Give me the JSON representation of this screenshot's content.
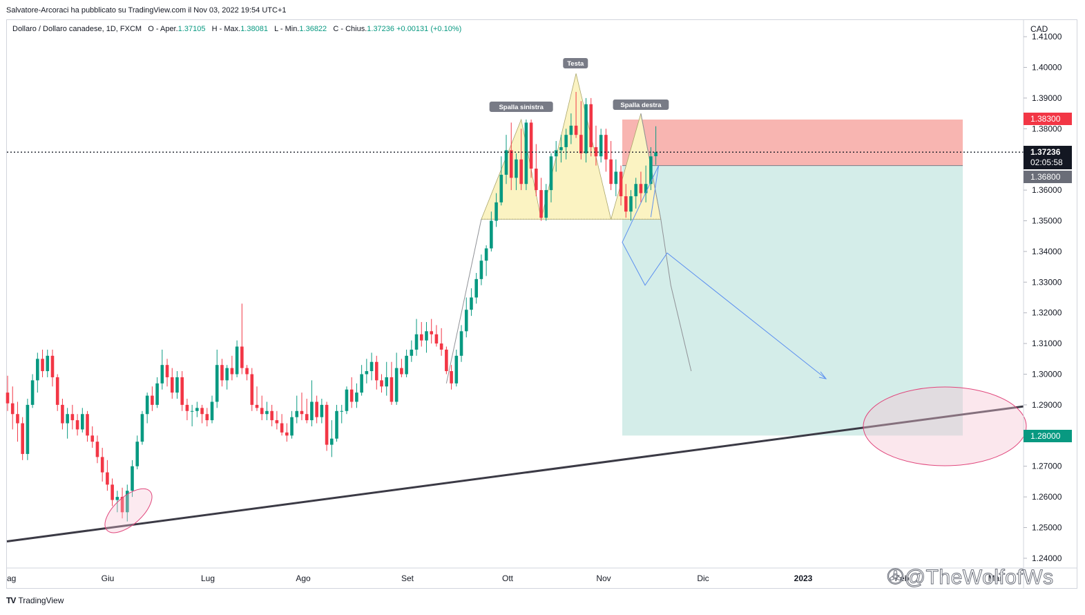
{
  "header": {
    "publisher_line": "Salvatore-Arcoraci ha pubblicato su TradingView.com il Nov 03, 2022 19:54 UTC+1"
  },
  "legend": {
    "symbol": "Dollaro / Dollaro canadese, 1D, FXCM",
    "o_label": "O",
    "o_prefix": "- Aper.",
    "o_value": "1.37105",
    "h_label": "H",
    "h_prefix": "- Max.",
    "h_value": "1.38081",
    "l_label": "L",
    "l_prefix": "- Min.",
    "l_value": "1.36822",
    "c_label": "C",
    "c_prefix": "- Chius.",
    "c_value": "1.37236",
    "change": "+0.00131 (+0.10%)"
  },
  "currency": "CAD",
  "price_tags": {
    "stop": "1.38300",
    "last": "1.37236",
    "countdown": "02:05:58",
    "entry": "1.36800",
    "target": "1.28000"
  },
  "annotations": {
    "left_shoulder": "Spalla sinistra",
    "head": "Testa",
    "right_shoulder": "Spalla destra"
  },
  "footer": {
    "brand": "TradingView",
    "watermark": "@TheWolfofWs"
  },
  "colors": {
    "up": "#089981",
    "down": "#f23645",
    "stop_zone": "#f7a8a3",
    "target_zone": "#cdeae5",
    "pattern_fill": "#fbf3c2",
    "trendline": "#3b3a45",
    "projection": "#5b8ff0",
    "ellipse": "#e0457b"
  },
  "chart_data": {
    "type": "candlestick",
    "title": "Dollaro / Dollaro canadese, 1D, FXCM",
    "ylabel": "CAD",
    "ylim": [
      1.235,
      1.415
    ],
    "y_ticks": [
      1.24,
      1.25,
      1.26,
      1.27,
      1.28,
      1.29,
      1.3,
      1.31,
      1.32,
      1.33,
      1.34,
      1.35,
      1.36,
      1.37,
      1.38,
      1.39,
      1.4,
      1.41
    ],
    "x_ticks": [
      "ag",
      "Giu",
      "Lug",
      "Ago",
      "Set",
      "Ott",
      "Nov",
      "Dic",
      "2023",
      "Feb",
      "Mar"
    ],
    "last_price": 1.37236,
    "position": {
      "entry": 1.368,
      "stop": 1.383,
      "target": 1.28
    },
    "neckline": 1.3505,
    "pattern_points": [
      {
        "label": "Spalla sinistra",
        "price": 1.383
      },
      {
        "label": "Testa",
        "price": 1.398
      },
      {
        "label": "Spalla destra",
        "price": 1.385
      }
    ],
    "trendline": {
      "start_price": 1.2455,
      "end_price": 1.2895
    },
    "projection_path": [
      1.368,
      1.343,
      1.329,
      1.3395,
      1.2985
    ],
    "ohlc": [
      [
        1.294,
        1.2995,
        1.288,
        1.2905
      ],
      [
        1.2905,
        1.296,
        1.282,
        1.287
      ],
      [
        1.287,
        1.291,
        1.278,
        1.284
      ],
      [
        1.284,
        1.286,
        1.272,
        1.274
      ],
      [
        1.274,
        1.292,
        1.272,
        1.29
      ],
      [
        1.29,
        1.3,
        1.289,
        1.298
      ],
      [
        1.298,
        1.307,
        1.294,
        1.305
      ],
      [
        1.305,
        1.308,
        1.299,
        1.301
      ],
      [
        1.301,
        1.308,
        1.299,
        1.306
      ],
      [
        1.306,
        1.308,
        1.296,
        1.299
      ],
      [
        1.299,
        1.3,
        1.288,
        1.29
      ],
      [
        1.29,
        1.292,
        1.282,
        1.284
      ],
      [
        1.284,
        1.289,
        1.279,
        1.287
      ],
      [
        1.287,
        1.29,
        1.282,
        1.285
      ],
      [
        1.285,
        1.287,
        1.28,
        1.282
      ],
      [
        1.282,
        1.289,
        1.281,
        1.287
      ],
      [
        1.287,
        1.288,
        1.278,
        1.28
      ],
      [
        1.28,
        1.283,
        1.276,
        1.278
      ],
      [
        1.278,
        1.28,
        1.271,
        1.273
      ],
      [
        1.273,
        1.276,
        1.265,
        1.268
      ],
      [
        1.268,
        1.272,
        1.262,
        1.264
      ],
      [
        1.264,
        1.266,
        1.257,
        1.259
      ],
      [
        1.259,
        1.262,
        1.255,
        1.26
      ],
      [
        1.26,
        1.263,
        1.253,
        1.255
      ],
      [
        1.255,
        1.264,
        1.252,
        1.262
      ],
      [
        1.262,
        1.272,
        1.26,
        1.27
      ],
      [
        1.27,
        1.28,
        1.269,
        1.278
      ],
      [
        1.278,
        1.288,
        1.277,
        1.287
      ],
      [
        1.287,
        1.294,
        1.284,
        1.293
      ],
      [
        1.293,
        1.296,
        1.288,
        1.29
      ],
      [
        1.29,
        1.299,
        1.289,
        1.297
      ],
      [
        1.297,
        1.308,
        1.295,
        1.303
      ],
      [
        1.303,
        1.305,
        1.296,
        1.299
      ],
      [
        1.299,
        1.302,
        1.292,
        1.294
      ],
      [
        1.294,
        1.301,
        1.292,
        1.299
      ],
      [
        1.299,
        1.301,
        1.288,
        1.29
      ],
      [
        1.29,
        1.292,
        1.285,
        1.288
      ],
      [
        1.288,
        1.29,
        1.283,
        1.288
      ],
      [
        1.288,
        1.291,
        1.286,
        1.289
      ],
      [
        1.289,
        1.29,
        1.284,
        1.287
      ],
      [
        1.287,
        1.289,
        1.283,
        1.285
      ],
      [
        1.285,
        1.293,
        1.284,
        1.291
      ],
      [
        1.291,
        1.308,
        1.289,
        1.303
      ],
      [
        1.303,
        1.305,
        1.296,
        1.298
      ],
      [
        1.298,
        1.303,
        1.295,
        1.302
      ],
      [
        1.302,
        1.306,
        1.298,
        1.3
      ],
      [
        1.3,
        1.311,
        1.299,
        1.309
      ],
      [
        1.309,
        1.323,
        1.3,
        1.302
      ],
      [
        1.302,
        1.303,
        1.298,
        1.3
      ],
      [
        1.3,
        1.302,
        1.288,
        1.29
      ],
      [
        1.29,
        1.296,
        1.288,
        1.289
      ],
      [
        1.289,
        1.293,
        1.285,
        1.287
      ],
      [
        1.287,
        1.291,
        1.285,
        1.288
      ],
      [
        1.288,
        1.29,
        1.283,
        1.285
      ],
      [
        1.285,
        1.288,
        1.282,
        1.284
      ],
      [
        1.284,
        1.287,
        1.28,
        1.281
      ],
      [
        1.281,
        1.284,
        1.278,
        1.28
      ],
      [
        1.28,
        1.288,
        1.279,
        1.286
      ],
      [
        1.286,
        1.293,
        1.284,
        1.288
      ],
      [
        1.288,
        1.294,
        1.285,
        1.287
      ],
      [
        1.287,
        1.292,
        1.284,
        1.285
      ],
      [
        1.285,
        1.298,
        1.283,
        1.291
      ],
      [
        1.291,
        1.293,
        1.284,
        1.286
      ],
      [
        1.286,
        1.292,
        1.284,
        1.29
      ],
      [
        1.29,
        1.291,
        1.275,
        1.277
      ],
      [
        1.277,
        1.285,
        1.273,
        1.279
      ],
      [
        1.279,
        1.29,
        1.278,
        1.288
      ],
      [
        1.288,
        1.29,
        1.284,
        1.288
      ],
      [
        1.288,
        1.296,
        1.287,
        1.295
      ],
      [
        1.295,
        1.299,
        1.289,
        1.291
      ],
      [
        1.291,
        1.297,
        1.289,
        1.294
      ],
      [
        1.294,
        1.303,
        1.293,
        1.3
      ],
      [
        1.3,
        1.305,
        1.297,
        1.301
      ],
      [
        1.301,
        1.307,
        1.298,
        1.304
      ],
      [
        1.304,
        1.306,
        1.295,
        1.298
      ],
      [
        1.298,
        1.3,
        1.294,
        1.296
      ],
      [
        1.296,
        1.304,
        1.293,
        1.299
      ],
      [
        1.299,
        1.304,
        1.29,
        1.291
      ],
      [
        1.291,
        1.307,
        1.29,
        1.302
      ],
      [
        1.302,
        1.305,
        1.299,
        1.3
      ],
      [
        1.3,
        1.308,
        1.299,
        1.306
      ],
      [
        1.306,
        1.311,
        1.304,
        1.308
      ],
      [
        1.308,
        1.318,
        1.306,
        1.313
      ],
      [
        1.313,
        1.317,
        1.309,
        1.311
      ],
      [
        1.311,
        1.317,
        1.307,
        1.314
      ],
      [
        1.314,
        1.318,
        1.31,
        1.313
      ],
      [
        1.313,
        1.316,
        1.309,
        1.31
      ],
      [
        1.31,
        1.315,
        1.306,
        1.308
      ],
      [
        1.308,
        1.309,
        1.3,
        1.301
      ],
      [
        1.301,
        1.303,
        1.295,
        1.297
      ],
      [
        1.297,
        1.308,
        1.296,
        1.306
      ],
      [
        1.306,
        1.316,
        1.304,
        1.314
      ],
      [
        1.314,
        1.325,
        1.312,
        1.321
      ],
      [
        1.321,
        1.328,
        1.319,
        1.325
      ],
      [
        1.325,
        1.333,
        1.323,
        1.331
      ],
      [
        1.331,
        1.339,
        1.329,
        1.337
      ],
      [
        1.337,
        1.342,
        1.332,
        1.341
      ],
      [
        1.341,
        1.353,
        1.34,
        1.35
      ],
      [
        1.35,
        1.359,
        1.348,
        1.356
      ],
      [
        1.356,
        1.371,
        1.355,
        1.365
      ],
      [
        1.365,
        1.378,
        1.362,
        1.373
      ],
      [
        1.373,
        1.382,
        1.36,
        1.364
      ],
      [
        1.364,
        1.372,
        1.36,
        1.37
      ],
      [
        1.37,
        1.38,
        1.36,
        1.362
      ],
      [
        1.362,
        1.383,
        1.36,
        1.382
      ],
      [
        1.382,
        1.383,
        1.364,
        1.367
      ],
      [
        1.367,
        1.375,
        1.358,
        1.36
      ],
      [
        1.36,
        1.364,
        1.35,
        1.351
      ],
      [
        1.351,
        1.362,
        1.35,
        1.36
      ],
      [
        1.36,
        1.372,
        1.356,
        1.371
      ],
      [
        1.371,
        1.376,
        1.366,
        1.373
      ],
      [
        1.373,
        1.378,
        1.369,
        1.374
      ],
      [
        1.374,
        1.38,
        1.37,
        1.378
      ],
      [
        1.378,
        1.385,
        1.375,
        1.381
      ],
      [
        1.381,
        1.392,
        1.377,
        1.378
      ],
      [
        1.378,
        1.389,
        1.37,
        1.372
      ],
      [
        1.372,
        1.39,
        1.369,
        1.388
      ],
      [
        1.388,
        1.39,
        1.371,
        1.374
      ],
      [
        1.374,
        1.381,
        1.368,
        1.371
      ],
      [
        1.371,
        1.38,
        1.369,
        1.378
      ],
      [
        1.378,
        1.38,
        1.366,
        1.37
      ],
      [
        1.37,
        1.376,
        1.36,
        1.362
      ],
      [
        1.362,
        1.37,
        1.358,
        1.366
      ],
      [
        1.366,
        1.368,
        1.355,
        1.358
      ],
      [
        1.358,
        1.362,
        1.351,
        1.353
      ],
      [
        1.353,
        1.36,
        1.35,
        1.358
      ],
      [
        1.358,
        1.364,
        1.354,
        1.362
      ],
      [
        1.362,
        1.366,
        1.356,
        1.359
      ],
      [
        1.359,
        1.368,
        1.356,
        1.362
      ],
      [
        1.362,
        1.374,
        1.36,
        1.371
      ],
      [
        1.37105,
        1.38081,
        1.36822,
        1.37236
      ]
    ]
  }
}
